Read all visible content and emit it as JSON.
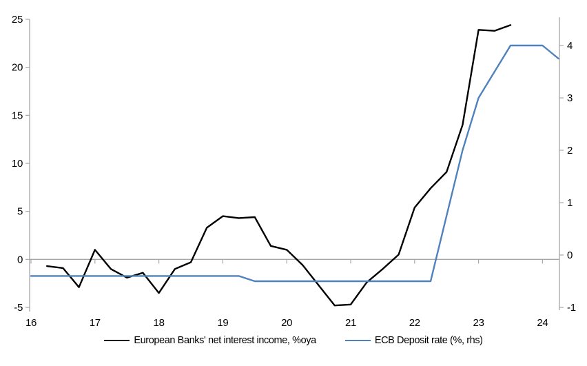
{
  "chart_data": {
    "type": "line",
    "title": "",
    "xlabel": "",
    "ylabel_left": "",
    "ylabel_right": "",
    "grid": "zero-line-only",
    "legend_position": "bottom",
    "x_axis": {
      "tick_labels": [
        "16",
        "17",
        "18",
        "19",
        "20",
        "21",
        "22",
        "23",
        "24"
      ],
      "tick_values": [
        16,
        17,
        18,
        19,
        20,
        21,
        22,
        23,
        24
      ],
      "range": [
        16,
        24.28
      ]
    },
    "left_axis": {
      "tick_labels": [
        "25",
        "20",
        "15",
        "10",
        "5",
        "0",
        "-5"
      ],
      "tick_values": [
        25,
        20,
        15,
        10,
        5,
        0,
        -5
      ],
      "range": [
        -5,
        25
      ]
    },
    "right_axis": {
      "tick_labels": [
        "4",
        "3",
        "2",
        "1",
        "0",
        "-1"
      ],
      "tick_values": [
        4,
        3,
        2,
        1,
        0,
        -1
      ],
      "range": [
        -1,
        4.5
      ]
    },
    "series": [
      {
        "name": "European Banks' net interest income, %oya",
        "axis": "left",
        "color": "#000000",
        "x": [
          16.25,
          16.5,
          16.75,
          17.0,
          17.25,
          17.5,
          17.75,
          18.0,
          18.25,
          18.5,
          18.75,
          19.0,
          19.25,
          19.5,
          19.75,
          20.0,
          20.25,
          20.5,
          20.75,
          21.0,
          21.25,
          21.5,
          21.75,
          22.0,
          22.25,
          22.5,
          22.75,
          23.0,
          23.25,
          23.5
        ],
        "values": [
          -0.7,
          -0.9,
          -2.9,
          1.0,
          -1.0,
          -1.9,
          -1.4,
          -3.5,
          -1.0,
          -0.3,
          3.3,
          4.5,
          4.3,
          4.4,
          1.4,
          1.0,
          -0.6,
          -2.7,
          -4.8,
          -4.7,
          -2.4,
          -1.0,
          0.5,
          5.4,
          7.4,
          9.1,
          14.0,
          23.9,
          23.8,
          24.4
        ]
      },
      {
        "name": "ECB Deposit rate (%, rhs)",
        "axis": "right",
        "color": "#4F81BD",
        "x": [
          16.0,
          16.25,
          16.5,
          16.75,
          17.0,
          17.25,
          17.5,
          17.75,
          18.0,
          18.25,
          18.5,
          18.75,
          19.0,
          19.25,
          19.5,
          19.75,
          20.0,
          20.25,
          20.5,
          20.75,
          21.0,
          21.25,
          21.5,
          21.75,
          22.0,
          22.25,
          22.5,
          22.75,
          23.0,
          23.25,
          23.5,
          23.75,
          24.0,
          24.25
        ],
        "values": [
          -0.4,
          -0.4,
          -0.4,
          -0.4,
          -0.4,
          -0.4,
          -0.4,
          -0.4,
          -0.4,
          -0.4,
          -0.4,
          -0.4,
          -0.4,
          -0.4,
          -0.5,
          -0.5,
          -0.5,
          -0.5,
          -0.5,
          -0.5,
          -0.5,
          -0.5,
          -0.5,
          -0.5,
          -0.5,
          -0.5,
          0.75,
          2.0,
          3.0,
          3.5,
          4.0,
          4.0,
          4.0,
          3.75
        ]
      }
    ]
  },
  "colors": {
    "axis_gray": "#A6A6A6",
    "background": "#FFFFFF",
    "tick_label": "#000000"
  }
}
